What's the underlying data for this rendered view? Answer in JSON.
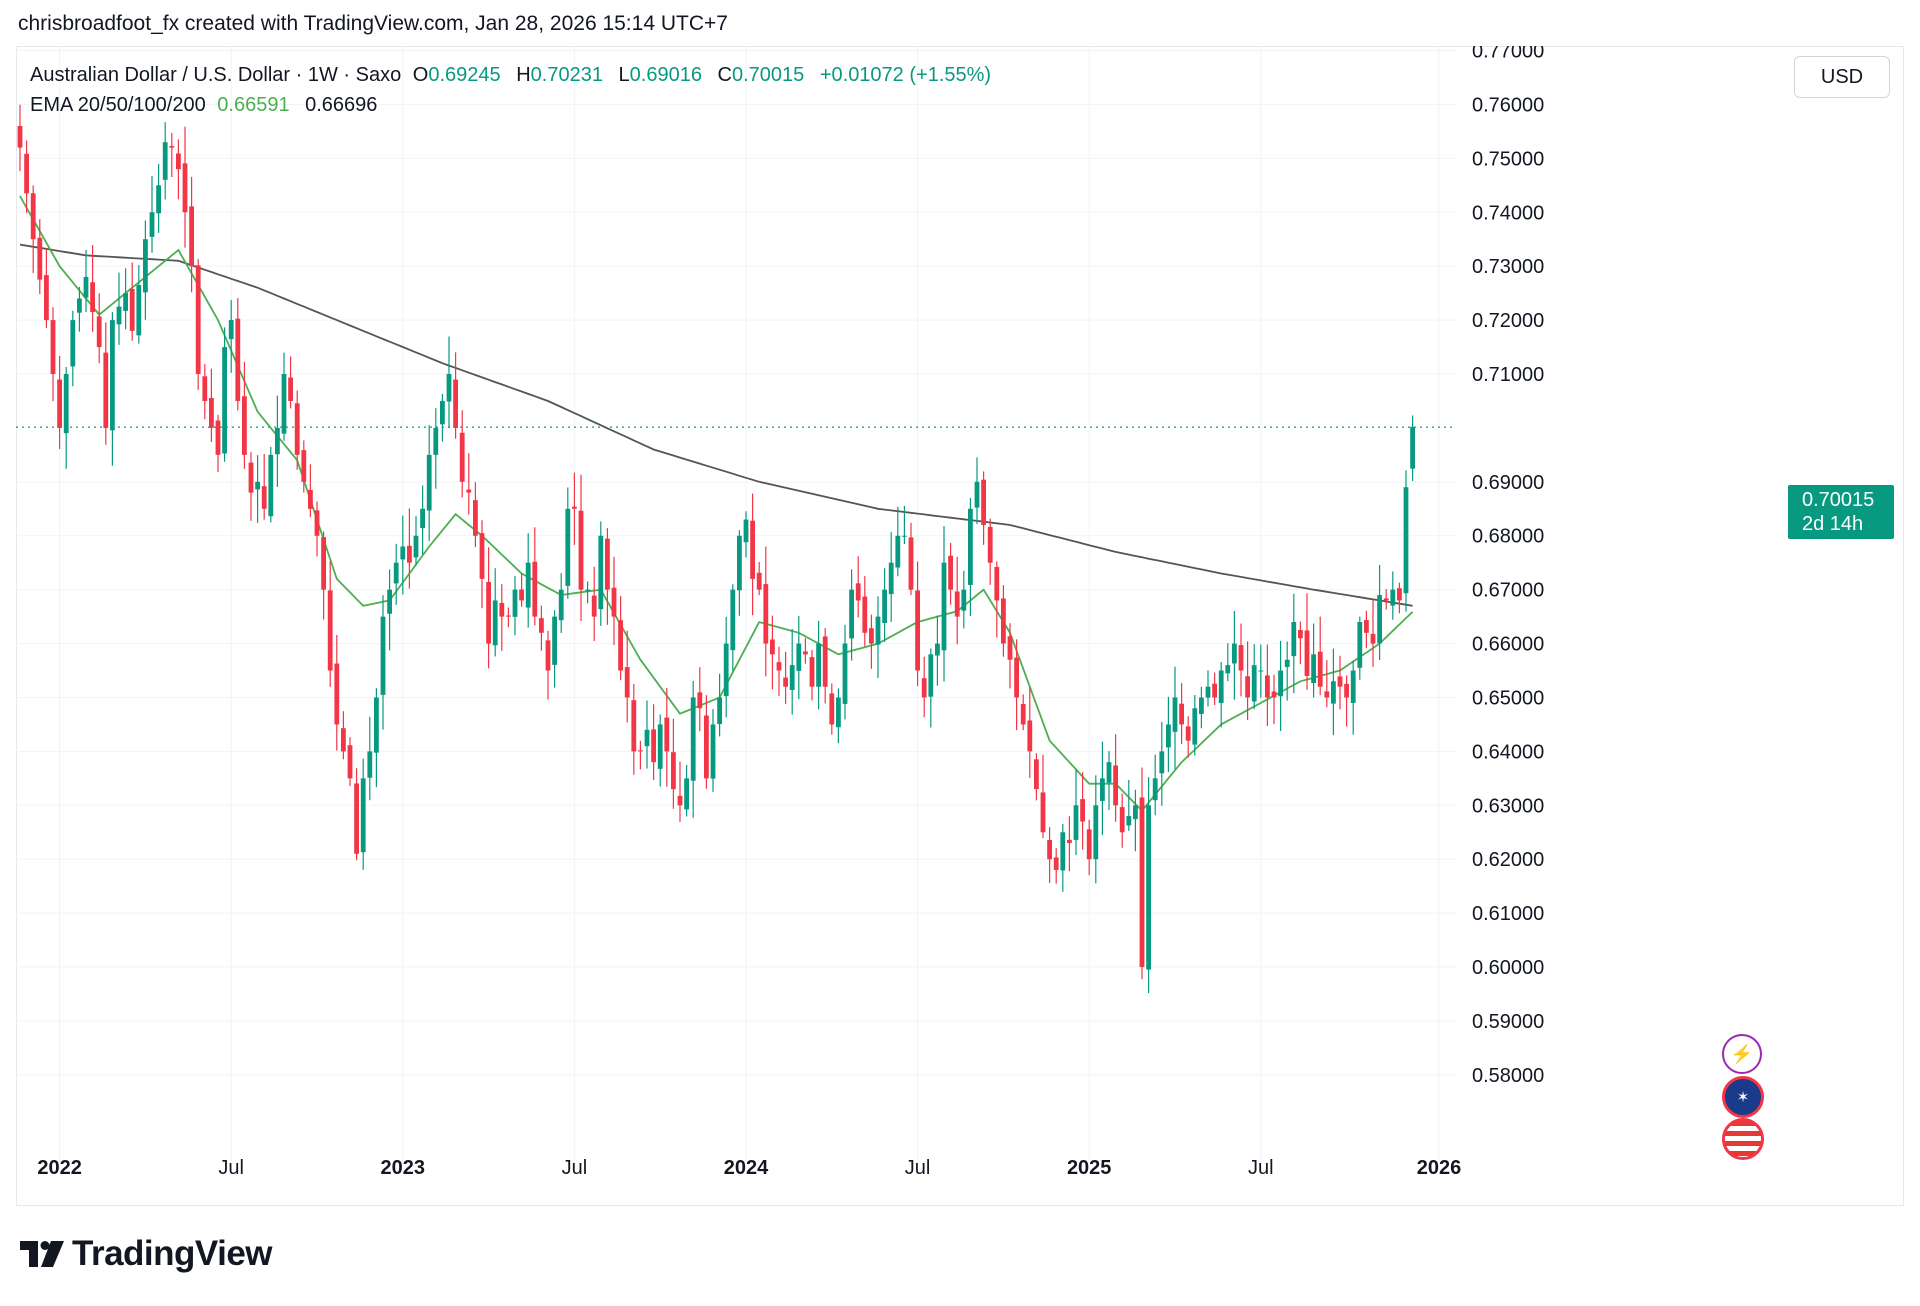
{
  "attribution": "chrisbroadfoot_fx created with TradingView.com, Jan 28, 2026 15:14 UTC+7",
  "legend": {
    "symbol": "Australian Dollar / U.S. Dollar · 1W · Saxo",
    "o_label": "O",
    "o_value": "0.69245",
    "h_label": "H",
    "h_value": "0.70231",
    "l_label": "L",
    "l_value": "0.69016",
    "c_label": "C",
    "c_value": "0.70015",
    "change": "+0.01072 (+1.55%)",
    "ema_label": "EMA 20/50/100/200",
    "ema_short": "0.66591",
    "ema_long": "0.66696"
  },
  "currency_button": "USD",
  "price_tag": {
    "price": "0.70015",
    "countdown": "2d 14h"
  },
  "event_icons": [
    "lightning-icon",
    "australia-flag-icon",
    "usa-flag-icon"
  ],
  "brand": "TradingView",
  "colors": {
    "up": "#089981",
    "down": "#f23645",
    "ema_short": "#4caf50",
    "ema_long": "#555555",
    "last_price_line": "#089981"
  },
  "chart_data": {
    "type": "candlestick",
    "title": "Australian Dollar / U.S. Dollar · 1W · Saxo",
    "timeframe": "1W",
    "ylim": [
      0.572,
      0.779
    ],
    "y_ticks": [
      "0.77000",
      "0.76000",
      "0.75000",
      "0.74000",
      "0.73000",
      "0.72000",
      "0.71000",
      "0.69000",
      "0.68000",
      "0.67000",
      "0.66000",
      "0.65000",
      "0.64000",
      "0.63000",
      "0.62000",
      "0.61000",
      "0.60000",
      "0.59000",
      "0.58000"
    ],
    "x_ticks": [
      {
        "label": "2022",
        "bold": true,
        "index": 6
      },
      {
        "label": "Jul",
        "bold": false,
        "index": 32
      },
      {
        "label": "2023",
        "bold": true,
        "index": 58
      },
      {
        "label": "Jul",
        "bold": false,
        "index": 84
      },
      {
        "label": "2024",
        "bold": true,
        "index": 110
      },
      {
        "label": "Jul",
        "bold": false,
        "index": 136
      },
      {
        "label": "2025",
        "bold": true,
        "index": 162
      },
      {
        "label": "Jul",
        "bold": false,
        "index": 188
      },
      {
        "label": "2026",
        "bold": true,
        "index": 215
      }
    ],
    "last_price": 0.70015,
    "grid": true,
    "anchors": [
      [
        0,
        0.752
      ],
      [
        2,
        0.735
      ],
      [
        4,
        0.72
      ],
      [
        6,
        0.7
      ],
      [
        8,
        0.72
      ],
      [
        10,
        0.728
      ],
      [
        12,
        0.715
      ],
      [
        13,
        0.7
      ],
      [
        14,
        0.72
      ],
      [
        16,
        0.725
      ],
      [
        17,
        0.718
      ],
      [
        19,
        0.735
      ],
      [
        21,
        0.745
      ],
      [
        22,
        0.753
      ],
      [
        23,
        0.752
      ],
      [
        24,
        0.748
      ],
      [
        25,
        0.74
      ],
      [
        26,
        0.73
      ],
      [
        27,
        0.71
      ],
      [
        29,
        0.7
      ],
      [
        30,
        0.695
      ],
      [
        31,
        0.715
      ],
      [
        32,
        0.72
      ],
      [
        33,
        0.705
      ],
      [
        34,
        0.695
      ],
      [
        35,
        0.688
      ],
      [
        36,
        0.69
      ],
      [
        37,
        0.685
      ],
      [
        38,
        0.695
      ],
      [
        39,
        0.7
      ],
      [
        40,
        0.71
      ],
      [
        41,
        0.705
      ],
      [
        42,
        0.695
      ],
      [
        43,
        0.69
      ],
      [
        44,
        0.685
      ],
      [
        45,
        0.68
      ],
      [
        46,
        0.67
      ],
      [
        47,
        0.655
      ],
      [
        48,
        0.645
      ],
      [
        49,
        0.64
      ],
      [
        50,
        0.635
      ],
      [
        51,
        0.621
      ],
      [
        52,
        0.635
      ],
      [
        53,
        0.64
      ],
      [
        54,
        0.65
      ],
      [
        55,
        0.665
      ],
      [
        56,
        0.67
      ],
      [
        57,
        0.675
      ],
      [
        58,
        0.678
      ],
      [
        59,
        0.675
      ],
      [
        60,
        0.68
      ],
      [
        61,
        0.685
      ],
      [
        62,
        0.695
      ],
      [
        63,
        0.7
      ],
      [
        64,
        0.705
      ],
      [
        65,
        0.71
      ],
      [
        66,
        0.7
      ],
      [
        67,
        0.69
      ],
      [
        68,
        0.688
      ],
      [
        69,
        0.68
      ],
      [
        70,
        0.672
      ],
      [
        71,
        0.66
      ],
      [
        72,
        0.668
      ],
      [
        73,
        0.665
      ],
      [
        74,
        0.665
      ],
      [
        75,
        0.67
      ],
      [
        76,
        0.668
      ],
      [
        77,
        0.675
      ],
      [
        78,
        0.665
      ],
      [
        79,
        0.662
      ],
      [
        80,
        0.655
      ],
      [
        81,
        0.665
      ],
      [
        82,
        0.67
      ],
      [
        83,
        0.685
      ],
      [
        84,
        0.685
      ],
      [
        85,
        0.67
      ],
      [
        86,
        0.67
      ],
      [
        87,
        0.665
      ],
      [
        88,
        0.68
      ],
      [
        89,
        0.67
      ],
      [
        90,
        0.665
      ],
      [
        91,
        0.655
      ],
      [
        92,
        0.65
      ],
      [
        93,
        0.64
      ],
      [
        94,
        0.64
      ],
      [
        95,
        0.644
      ],
      [
        96,
        0.638
      ],
      [
        97,
        0.645
      ],
      [
        98,
        0.64
      ],
      [
        99,
        0.633
      ],
      [
        100,
        0.63
      ],
      [
        101,
        0.635
      ],
      [
        102,
        0.65
      ],
      [
        103,
        0.648
      ],
      [
        104,
        0.635
      ],
      [
        105,
        0.645
      ],
      [
        106,
        0.65
      ],
      [
        107,
        0.66
      ],
      [
        108,
        0.67
      ],
      [
        109,
        0.68
      ],
      [
        110,
        0.683
      ],
      [
        111,
        0.672
      ],
      [
        112,
        0.67
      ],
      [
        113,
        0.66
      ],
      [
        114,
        0.658
      ],
      [
        115,
        0.655
      ],
      [
        116,
        0.652
      ],
      [
        117,
        0.656
      ],
      [
        118,
        0.66
      ],
      [
        119,
        0.658
      ],
      [
        120,
        0.652
      ],
      [
        121,
        0.66
      ],
      [
        122,
        0.652
      ],
      [
        123,
        0.645
      ],
      [
        124,
        0.65
      ],
      [
        125,
        0.66
      ],
      [
        126,
        0.67
      ],
      [
        127,
        0.668
      ],
      [
        128,
        0.662
      ],
      [
        129,
        0.66
      ],
      [
        130,
        0.665
      ],
      [
        131,
        0.67
      ],
      [
        132,
        0.675
      ],
      [
        133,
        0.68
      ],
      [
        134,
        0.68
      ],
      [
        135,
        0.67
      ],
      [
        136,
        0.655
      ],
      [
        137,
        0.65
      ],
      [
        138,
        0.658
      ],
      [
        139,
        0.66
      ],
      [
        140,
        0.675
      ],
      [
        141,
        0.67
      ],
      [
        142,
        0.665
      ],
      [
        143,
        0.67
      ],
      [
        144,
        0.685
      ],
      [
        145,
        0.69
      ],
      [
        146,
        0.682
      ],
      [
        147,
        0.675
      ],
      [
        148,
        0.668
      ],
      [
        149,
        0.66
      ],
      [
        150,
        0.657
      ],
      [
        151,
        0.65
      ],
      [
        152,
        0.645
      ],
      [
        153,
        0.64
      ],
      [
        154,
        0.633
      ],
      [
        155,
        0.625
      ],
      [
        156,
        0.62
      ],
      [
        157,
        0.618
      ],
      [
        158,
        0.625
      ],
      [
        159,
        0.623
      ],
      [
        160,
        0.63
      ],
      [
        161,
        0.627
      ],
      [
        162,
        0.62
      ],
      [
        163,
        0.63
      ],
      [
        164,
        0.635
      ],
      [
        165,
        0.638
      ],
      [
        166,
        0.63
      ],
      [
        167,
        0.625
      ],
      [
        168,
        0.628
      ],
      [
        169,
        0.63
      ],
      [
        170,
        0.6
      ],
      [
        171,
        0.63
      ],
      [
        172,
        0.635
      ],
      [
        173,
        0.64
      ],
      [
        174,
        0.645
      ],
      [
        175,
        0.65
      ],
      [
        176,
        0.645
      ],
      [
        177,
        0.642
      ],
      [
        178,
        0.648
      ],
      [
        179,
        0.65
      ],
      [
        180,
        0.652
      ],
      [
        181,
        0.65
      ],
      [
        182,
        0.655
      ],
      [
        183,
        0.656
      ],
      [
        184,
        0.66
      ],
      [
        185,
        0.655
      ],
      [
        186,
        0.65
      ],
      [
        187,
        0.656
      ],
      [
        188,
        0.655
      ],
      [
        189,
        0.65
      ],
      [
        190,
        0.65
      ],
      [
        191,
        0.655
      ],
      [
        192,
        0.657
      ],
      [
        193,
        0.664
      ],
      [
        194,
        0.661
      ],
      [
        195,
        0.654
      ],
      [
        196,
        0.658
      ],
      [
        197,
        0.652
      ],
      [
        198,
        0.65
      ],
      [
        199,
        0.653
      ],
      [
        200,
        0.652
      ],
      [
        201,
        0.65
      ],
      [
        202,
        0.655
      ],
      [
        203,
        0.664
      ],
      [
        204,
        0.662
      ],
      [
        205,
        0.66
      ],
      [
        206,
        0.669
      ],
      [
        207,
        0.668
      ],
      [
        208,
        0.67
      ],
      [
        209,
        0.668
      ],
      [
        210,
        0.689
      ],
      [
        211,
        0.7002
      ]
    ],
    "ema_short_anchors": [
      [
        0,
        0.743
      ],
      [
        6,
        0.73
      ],
      [
        12,
        0.721
      ],
      [
        18,
        0.727
      ],
      [
        24,
        0.733
      ],
      [
        30,
        0.72
      ],
      [
        36,
        0.703
      ],
      [
        42,
        0.694
      ],
      [
        48,
        0.672
      ],
      [
        52,
        0.667
      ],
      [
        56,
        0.668
      ],
      [
        62,
        0.678
      ],
      [
        66,
        0.684
      ],
      [
        70,
        0.68
      ],
      [
        76,
        0.673
      ],
      [
        82,
        0.669
      ],
      [
        88,
        0.67
      ],
      [
        94,
        0.657
      ],
      [
        100,
        0.647
      ],
      [
        106,
        0.65
      ],
      [
        112,
        0.664
      ],
      [
        118,
        0.662
      ],
      [
        124,
        0.658
      ],
      [
        130,
        0.66
      ],
      [
        136,
        0.664
      ],
      [
        142,
        0.666
      ],
      [
        146,
        0.67
      ],
      [
        150,
        0.662
      ],
      [
        156,
        0.642
      ],
      [
        162,
        0.634
      ],
      [
        166,
        0.634
      ],
      [
        170,
        0.629
      ],
      [
        176,
        0.638
      ],
      [
        182,
        0.645
      ],
      [
        188,
        0.649
      ],
      [
        194,
        0.653
      ],
      [
        200,
        0.655
      ],
      [
        206,
        0.66
      ],
      [
        211,
        0.6659
      ]
    ],
    "ema_long_anchors": [
      [
        0,
        0.734
      ],
      [
        10,
        0.732
      ],
      [
        24,
        0.731
      ],
      [
        36,
        0.726
      ],
      [
        50,
        0.719
      ],
      [
        64,
        0.712
      ],
      [
        80,
        0.705
      ],
      [
        96,
        0.696
      ],
      [
        112,
        0.69
      ],
      [
        130,
        0.685
      ],
      [
        150,
        0.682
      ],
      [
        166,
        0.677
      ],
      [
        182,
        0.673
      ],
      [
        196,
        0.67
      ],
      [
        206,
        0.668
      ],
      [
        211,
        0.667
      ]
    ]
  }
}
